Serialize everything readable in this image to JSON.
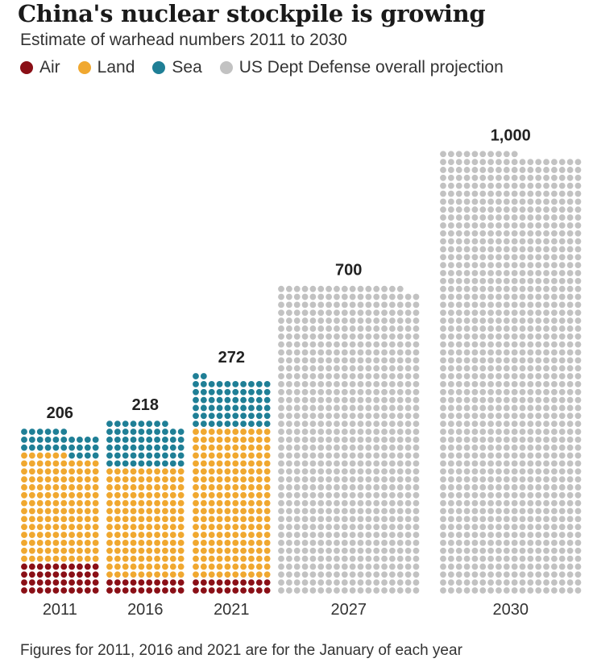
{
  "colors": {
    "Air": "#8a0f16",
    "Land": "#f0a830",
    "Sea": "#1f7f96",
    "Projection": "#c2c2c2"
  },
  "legend": [
    {
      "key": "Air",
      "label": "Air",
      "icon": "dot"
    },
    {
      "key": "Land",
      "label": "Land",
      "icon": "dot"
    },
    {
      "key": "Sea",
      "label": "Sea",
      "icon": "dot"
    },
    {
      "key": "Projection",
      "label": "US Dept Defense overall projection",
      "icon": "dot"
    }
  ],
  "chart_data": {
    "type": "dot-matrix stacked bar",
    "title": "China's nuclear stockpile is growing",
    "subtitle": "Estimate of warhead numbers 2011 to 2030",
    "categories": [
      "2011",
      "2016",
      "2021",
      "2027",
      "2030"
    ],
    "totals": [
      206,
      218,
      272,
      700,
      1000
    ],
    "total_labels": [
      "206",
      "218",
      "272",
      "700",
      "1,000"
    ],
    "series": [
      {
        "name": "Air",
        "values": [
          40,
          20,
          20,
          null,
          null
        ]
      },
      {
        "name": "Land",
        "values": [
          136,
          140,
          190,
          null,
          null
        ]
      },
      {
        "name": "Sea",
        "values": [
          30,
          58,
          62,
          null,
          null
        ]
      },
      {
        "name": "US Dept Defense overall projection",
        "values": [
          null,
          null,
          null,
          700,
          1000
        ]
      }
    ],
    "dot_unit": "1 warhead per dot",
    "legend_position": "top",
    "footnote": "Figures for 2011, 2016 and 2021 are for the January of each year"
  }
}
